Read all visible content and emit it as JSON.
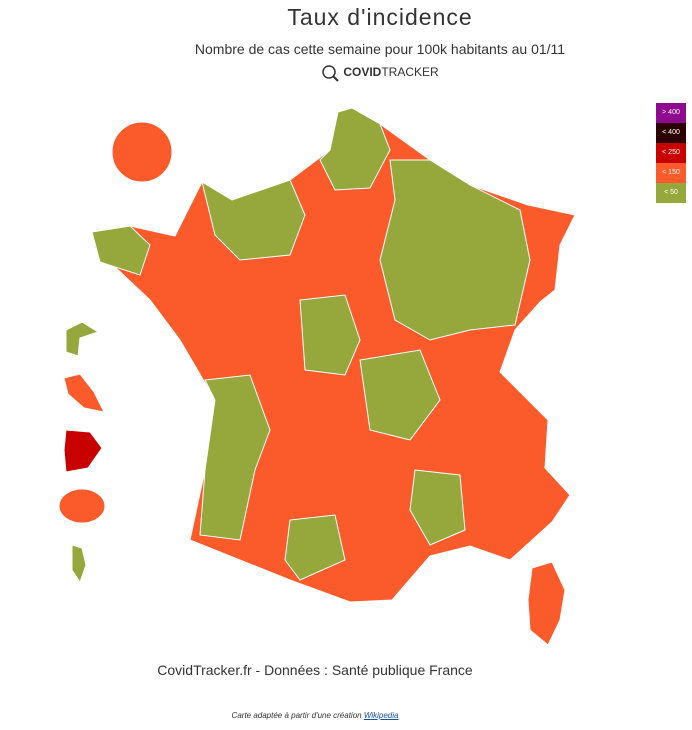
{
  "header": {
    "title": "Taux d'incidence",
    "subtitle": "Nombre de cas cette semaine pour 100k habitants au 01/11",
    "brand_bold": "COVID",
    "brand_rest": "TRACKER"
  },
  "legend": [
    {
      "label": "> 400",
      "color": "#8e0a8e"
    },
    {
      "label": "< 400",
      "color": "#2d0000"
    },
    {
      "label": "< 250",
      "color": "#c80000"
    },
    {
      "label": "< 150",
      "color": "#fb5a2b"
    },
    {
      "label": "< 50",
      "color": "#96a83b"
    }
  ],
  "footer": {
    "source": "CovidTracker.fr - Données : Santé publique France",
    "credit": "Carte adaptée à partir d'une création",
    "credit_link": "Wikipedia"
  }
}
